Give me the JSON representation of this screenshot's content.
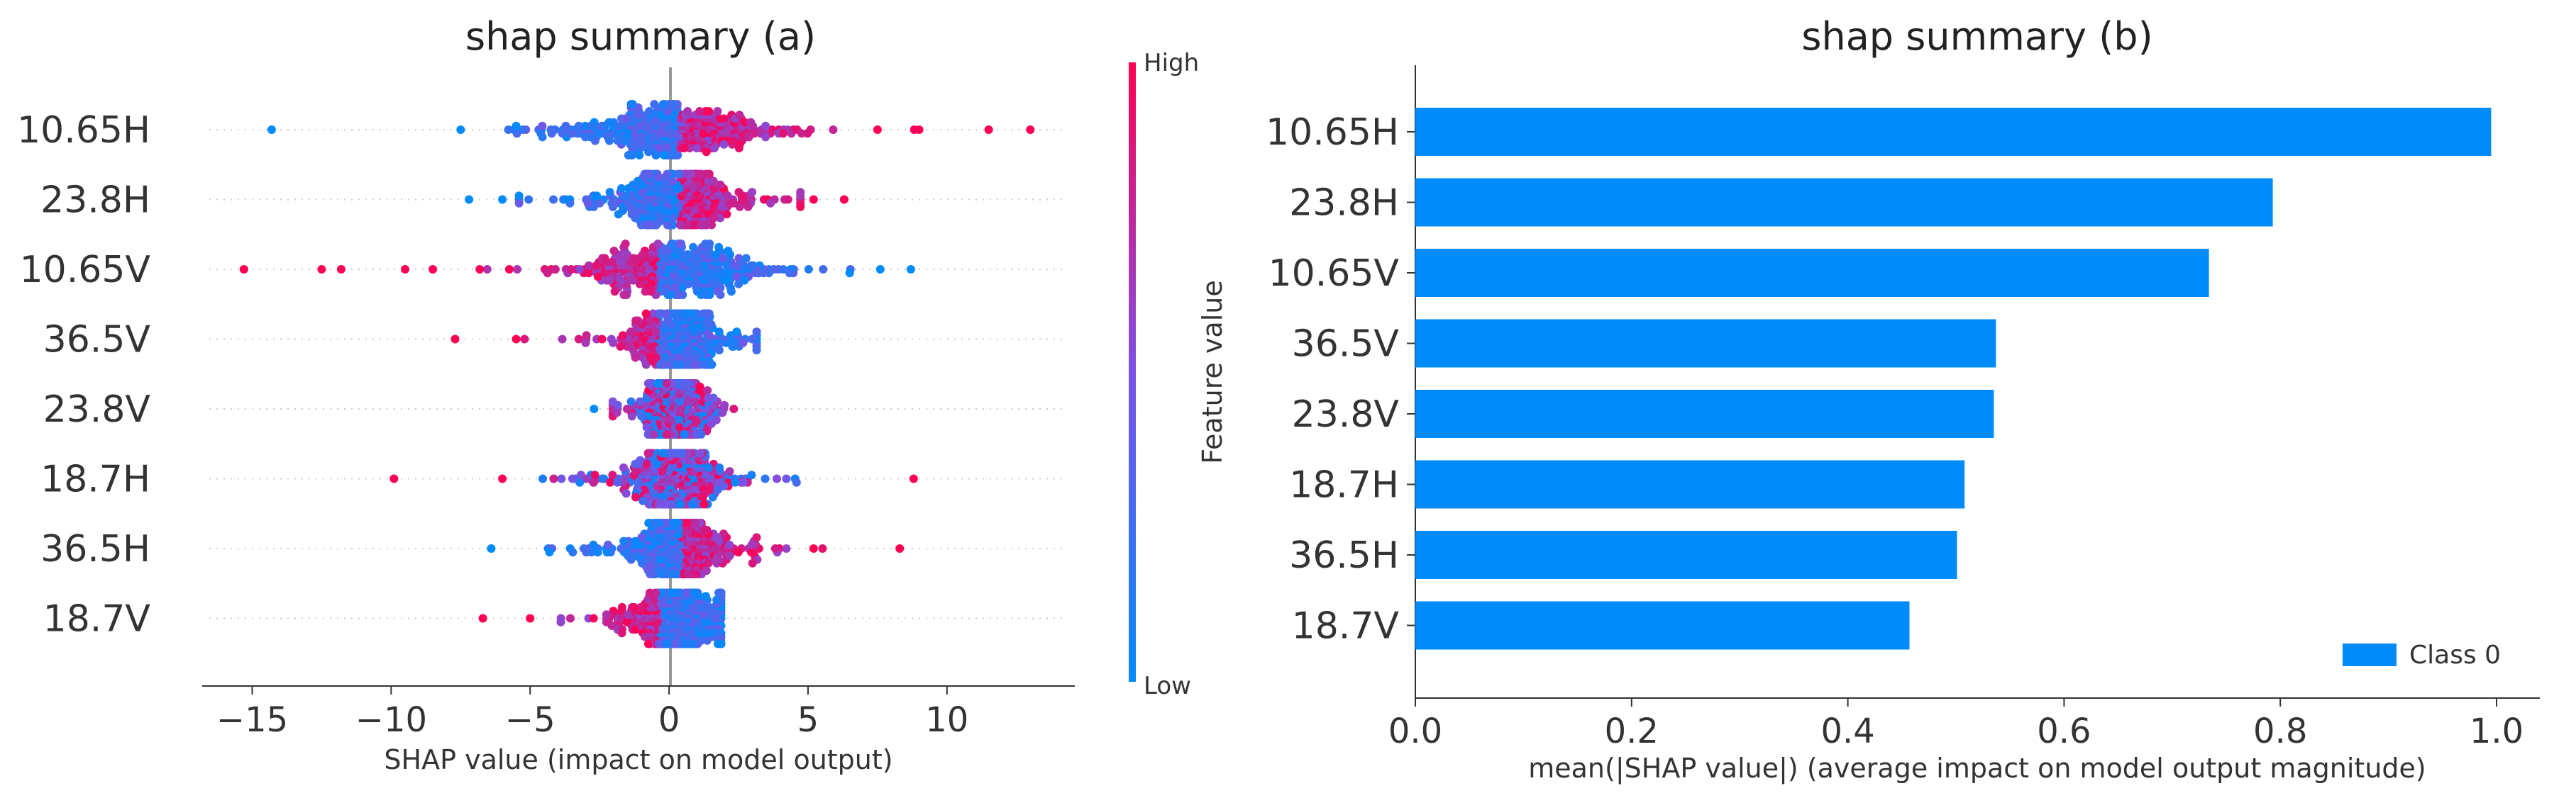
{
  "chart_data": [
    {
      "type": "scatter",
      "subtype": "shap-beeswarm",
      "title": "shap summary (a)",
      "xlabel": "SHAP value (impact on model output)",
      "xlim": [
        -16.8,
        14.6
      ],
      "xticks": [
        -15,
        -10,
        -5,
        0,
        5,
        10
      ],
      "xtick_labels": [
        "−15",
        "−10",
        "−5",
        "0",
        "5",
        "10"
      ],
      "features": [
        {
          "name": "10.65H",
          "min": -14.3,
          "max": 13.0,
          "spread": 2.6,
          "high_side": "right",
          "outliers": [
            -14.3,
            -7.5,
            -5.5,
            7.5,
            9.0,
            11.5,
            13.0
          ]
        },
        {
          "name": "23.8H",
          "min": -7.2,
          "max": 6.3,
          "spread": 2.0,
          "high_side": "right",
          "outliers": [
            -7.2,
            -6.0,
            -5.4,
            5.2,
            6.3
          ]
        },
        {
          "name": "10.65V",
          "min": -15.3,
          "max": 8.7,
          "spread": 2.6,
          "high_side": "left",
          "outliers": [
            -15.3,
            -12.5,
            -11.8,
            -9.5,
            -8.5,
            6.5,
            7.6,
            8.7
          ]
        },
        {
          "name": "36.5V",
          "min": -7.7,
          "max": 4.2,
          "spread": 1.5,
          "high_side": "left",
          "outliers": [
            -7.7,
            -5.5
          ]
        },
        {
          "name": "23.8V",
          "min": -2.7,
          "max": 3.2,
          "spread": 1.0,
          "high_side": "mixed",
          "outliers": [
            -2.7
          ]
        },
        {
          "name": "18.7H",
          "min": -9.9,
          "max": 8.8,
          "spread": 1.6,
          "high_side": "mixed",
          "outliers": [
            -9.9,
            -6.0,
            8.8
          ]
        },
        {
          "name": "36.5H",
          "min": -6.4,
          "max": 8.3,
          "spread": 1.5,
          "high_side": "right",
          "outliers": [
            -6.4,
            -4.3,
            5.2,
            8.3
          ]
        },
        {
          "name": "18.7V",
          "min": -6.7,
          "max": 2.5,
          "spread": 1.3,
          "high_side": "left",
          "outliers": [
            -6.7,
            -5.0
          ]
        }
      ],
      "colorbar": {
        "label": "Feature value",
        "high": "High",
        "low": "Low",
        "high_color": "#ff0052",
        "low_color": "#008bfb"
      }
    },
    {
      "type": "bar",
      "orientation": "horizontal",
      "title": "shap summary (b)",
      "xlabel": "mean(|SHAP value|) (average impact on model output magnitude)",
      "xlim": [
        0.0,
        1.04
      ],
      "xticks": [
        0.0,
        0.2,
        0.4,
        0.6,
        0.8,
        1.0
      ],
      "xtick_labels": [
        "0.0",
        "0.2",
        "0.4",
        "0.6",
        "0.8",
        "1.0"
      ],
      "categories": [
        "10.65H",
        "23.8H",
        "10.65V",
        "36.5V",
        "23.8V",
        "18.7H",
        "36.5H",
        "18.7V"
      ],
      "series": [
        {
          "name": "Class 0",
          "values": [
            0.995,
            0.793,
            0.734,
            0.537,
            0.535,
            0.508,
            0.501,
            0.457
          ],
          "color": "#008bfb"
        }
      ],
      "legend_position": "bottom-right"
    }
  ]
}
